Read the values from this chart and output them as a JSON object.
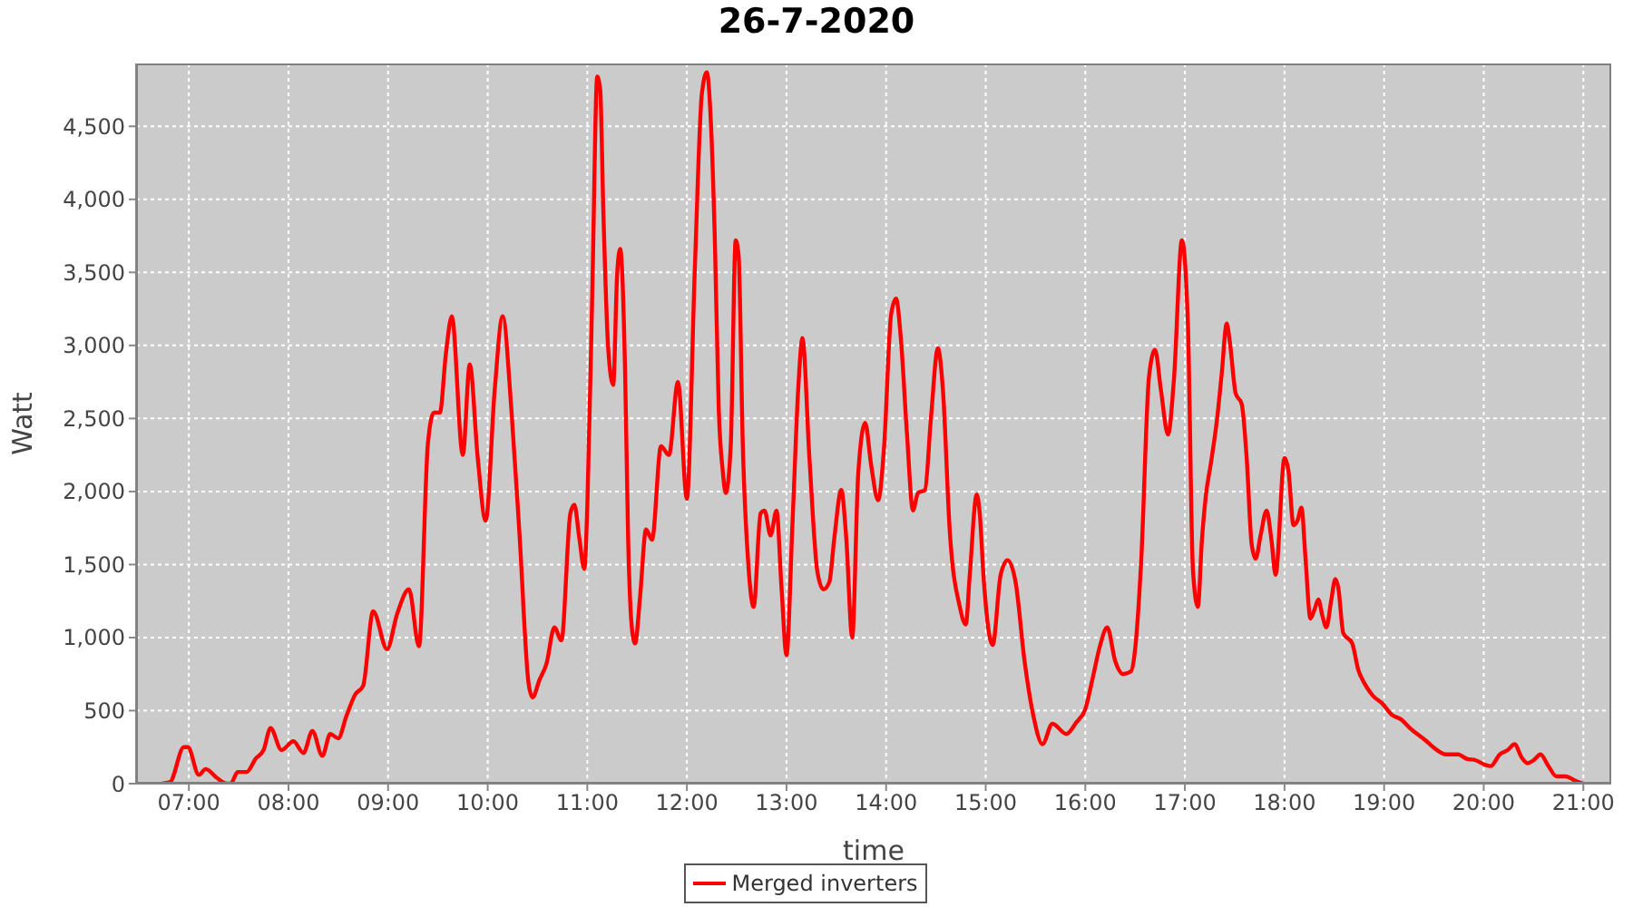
{
  "chart_data": {
    "type": "line",
    "title": "26-7-2020",
    "xlabel": "time",
    "ylabel": "Watt",
    "x": [
      6.73,
      6.81,
      6.95,
      6.99,
      7.1,
      7.17,
      7.28,
      7.38,
      7.42,
      7.49,
      7.58,
      7.67,
      7.75,
      7.82,
      7.93,
      8.05,
      8.15,
      8.24,
      8.34,
      8.42,
      8.5,
      8.58,
      8.67,
      8.75,
      8.85,
      8.99,
      9.09,
      9.21,
      9.31,
      9.4,
      9.46,
      9.52,
      9.58,
      9.64,
      9.75,
      9.82,
      9.9,
      9.98,
      10.07,
      10.15,
      10.24,
      10.32,
      10.41,
      10.45,
      10.52,
      10.59,
      10.67,
      10.74,
      10.83,
      10.87,
      10.92,
      10.97,
      11,
      11.05,
      11.1,
      11.13,
      11.16,
      11.21,
      11.26,
      11.3,
      11.33,
      11.38,
      11.41,
      11.45,
      11.48,
      11.53,
      11.59,
      11.65,
      11.74,
      11.82,
      11.91,
      12,
      12.08,
      12.15,
      12.2,
      12.24,
      12.28,
      12.32,
      12.36,
      12.39,
      12.44,
      12.49,
      12.52,
      12.56,
      12.62,
      12.67,
      12.74,
      12.78,
      12.84,
      12.9,
      12.95,
      13,
      13.06,
      13.12,
      13.16,
      13.23,
      13.31,
      13.37,
      13.43,
      13.48,
      13.55,
      13.6,
      13.66,
      13.72,
      13.79,
      13.85,
      13.92,
      13.98,
      14.05,
      14.1,
      14.15,
      14.21,
      14.27,
      14.32,
      14.39,
      14.45,
      14.52,
      14.57,
      14.64,
      14.74,
      14.8,
      14.84,
      14.91,
      14.94,
      14.98,
      15.07,
      15.15,
      15.22,
      15.3,
      15.39,
      15.48,
      15.57,
      15.67,
      15.81,
      15.91,
      16,
      16.07,
      16.15,
      16.22,
      16.3,
      16.38,
      16.46,
      16.5,
      16.56,
      16.64,
      16.7,
      16.76,
      16.83,
      16.89,
      16.97,
      17.03,
      17.08,
      17.13,
      17.17,
      17.21,
      17.26,
      17.32,
      17.37,
      17.42,
      17.45,
      17.51,
      17.57,
      17.62,
      17.67,
      17.71,
      17.76,
      17.82,
      17.87,
      17.91,
      18,
      18.04,
      18.09,
      18.13,
      18.17,
      18.21,
      18.26,
      18.3,
      18.34,
      18.38,
      18.42,
      18.47,
      18.51,
      18.54,
      18.59,
      18.68,
      18.74,
      18.8,
      18.89,
      18.98,
      19.08,
      19.17,
      19.26,
      19.41,
      19.53,
      19.62,
      19.74,
      19.83,
      19.92,
      20.01,
      20.07,
      20.16,
      20.24,
      20.31,
      20.38,
      20.44,
      20.5,
      20.57,
      20.65,
      20.73,
      20.82,
      20.92,
      21
    ],
    "series": [
      {
        "name": "Merged inverters",
        "color": "#ff0000",
        "values": [
          0,
          10,
          250,
          250,
          60,
          100,
          40,
          0,
          0,
          80,
          80,
          170,
          230,
          380,
          230,
          290,
          210,
          360,
          190,
          340,
          310,
          460,
          610,
          670,
          1180,
          920,
          1160,
          1330,
          940,
          2330,
          2540,
          2540,
          2940,
          3200,
          2250,
          2870,
          2230,
          1800,
          2690,
          3200,
          2540,
          1700,
          690,
          590,
          710,
          820,
          1070,
          980,
          1850,
          1910,
          1680,
          1470,
          1890,
          3360,
          4840,
          4750,
          3950,
          2980,
          2730,
          3490,
          3660,
          2810,
          1680,
          1050,
          960,
          1280,
          1740,
          1670,
          2310,
          2250,
          2750,
          1950,
          3530,
          4720,
          4870,
          4540,
          3740,
          2560,
          2140,
          1990,
          2310,
          3720,
          3610,
          2350,
          1470,
          1210,
          1850,
          1870,
          1700,
          1870,
          1340,
          880,
          1780,
          2730,
          3050,
          2230,
          1450,
          1330,
          1380,
          1680,
          2010,
          1680,
          1000,
          2120,
          2470,
          2180,
          1940,
          2310,
          3210,
          3320,
          3030,
          2390,
          1870,
          1990,
          2010,
          2500,
          2980,
          2700,
          1720,
          1210,
          1090,
          1430,
          1980,
          1850,
          1400,
          950,
          1430,
          1530,
          1380,
          840,
          460,
          270,
          410,
          340,
          420,
          510,
          710,
          950,
          1070,
          840,
          750,
          770,
          920,
          1510,
          2790,
          2970,
          2690,
          2390,
          2770,
          3720,
          3150,
          1470,
          1210,
          1660,
          1970,
          2190,
          2480,
          2810,
          3150,
          3030,
          2670,
          2600,
          2230,
          1640,
          1540,
          1700,
          1870,
          1660,
          1430,
          2230,
          2140,
          1770,
          1800,
          1890,
          1550,
          1130,
          1190,
          1260,
          1150,
          1070,
          1260,
          1400,
          1340,
          1030,
          960,
          780,
          690,
          600,
          550,
          470,
          440,
          380,
          300,
          230,
          200,
          200,
          170,
          160,
          130,
          120,
          200,
          230,
          270,
          180,
          140,
          160,
          200,
          120,
          50,
          50,
          20,
          0
        ]
      }
    ],
    "xlim": [
      6.47,
      21.28
    ],
    "xticks": [
      {
        "value": 7,
        "label": "07:00"
      },
      {
        "value": 8,
        "label": "08:00"
      },
      {
        "value": 9,
        "label": "09:00"
      },
      {
        "value": 10,
        "label": "10:00"
      },
      {
        "value": 11,
        "label": "11:00"
      },
      {
        "value": 12,
        "label": "12:00"
      },
      {
        "value": 13,
        "label": "13:00"
      },
      {
        "value": 14,
        "label": "14:00"
      },
      {
        "value": 15,
        "label": "15:00"
      },
      {
        "value": 16,
        "label": "16:00"
      },
      {
        "value": 17,
        "label": "17:00"
      },
      {
        "value": 18,
        "label": "18:00"
      },
      {
        "value": 19,
        "label": "19:00"
      },
      {
        "value": 20,
        "label": "20:00"
      },
      {
        "value": 21,
        "label": "21:00"
      }
    ],
    "ylim": [
      0,
      4930
    ],
    "yticks": [
      0,
      500,
      {
        "value": 1000,
        "label": "1,000"
      },
      {
        "value": 1500,
        "label": "1,500"
      },
      {
        "value": 2000,
        "label": "2,000"
      },
      {
        "value": 2500,
        "label": "2,500"
      },
      {
        "value": 3000,
        "label": "3,000"
      },
      {
        "value": 3500,
        "label": "3,500"
      },
      {
        "value": 4000,
        "label": "4,000"
      },
      {
        "value": 4500,
        "label": "4,500"
      }
    ],
    "grid": true,
    "legend": "bottom"
  }
}
